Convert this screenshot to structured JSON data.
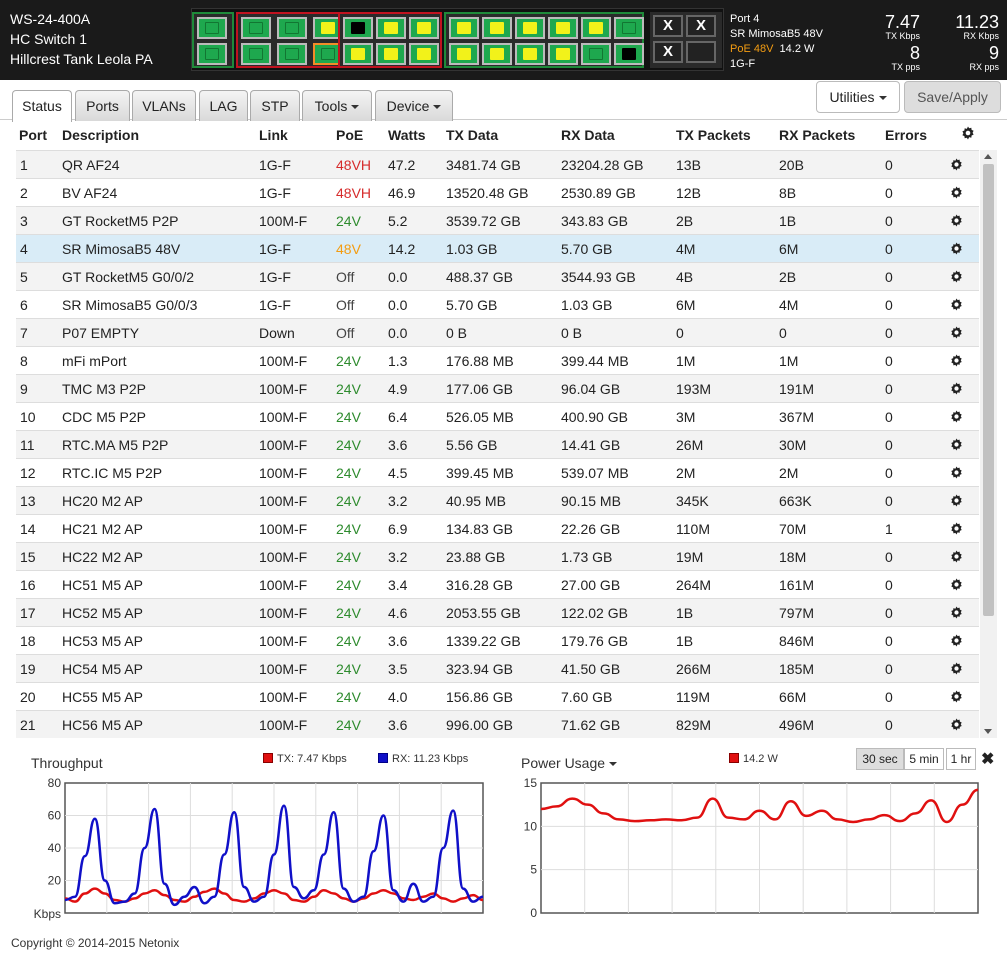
{
  "device": {
    "model": "WS-24-400A",
    "name": "HC Switch 1",
    "location": "Hillcrest Tank Leola PA"
  },
  "port_detail": {
    "port": "Port 4",
    "desc": "SR MimosaB5 48V",
    "poe": "PoE 48V",
    "watts": "14.2 W",
    "link": "1G-F"
  },
  "stats": {
    "tx_kbps": "7.47",
    "tx_kbps_label": "TX Kbps",
    "rx_kbps": "11.23",
    "rx_kbps_label": "RX Kbps",
    "tx_pps": "8",
    "tx_pps_label": "TX pps",
    "rx_pps": "9",
    "rx_pps_label": "RX pps"
  },
  "port_icons": {
    "group1": [
      {
        "row": 0,
        "col": 0,
        "state": "green"
      },
      {
        "row": 0,
        "col": 1,
        "state": "green"
      },
      {
        "row": 0,
        "col": 2,
        "state": "yellow"
      },
      {
        "row": 0,
        "col": 3,
        "state": "green"
      },
      {
        "row": 1,
        "col": 0,
        "state": "green"
      },
      {
        "row": 1,
        "col": 1,
        "state": "green"
      },
      {
        "row": 1,
        "col": 2,
        "state": "green",
        "selected": true
      },
      {
        "row": 1,
        "col": 3,
        "state": "green"
      }
    ],
    "group2": [
      {
        "row": 0,
        "col": 0,
        "state": "black"
      },
      {
        "row": 0,
        "col": 1,
        "state": "yellow"
      },
      {
        "row": 0,
        "col": 2,
        "state": "yellow"
      },
      {
        "row": 1,
        "col": 0,
        "state": "yellow"
      },
      {
        "row": 1,
        "col": 1,
        "state": "yellow"
      },
      {
        "row": 1,
        "col": 2,
        "state": "yellow"
      }
    ],
    "group3": [
      {
        "row": 0,
        "col": 0,
        "state": "yellow"
      },
      {
        "row": 0,
        "col": 1,
        "state": "yellow"
      },
      {
        "row": 0,
        "col": 2,
        "state": "yellow"
      },
      {
        "row": 0,
        "col": 3,
        "state": "yellow"
      },
      {
        "row": 0,
        "col": 4,
        "state": "yellow"
      },
      {
        "row": 0,
        "col": 5,
        "state": "green"
      },
      {
        "row": 1,
        "col": 0,
        "state": "yellow"
      },
      {
        "row": 1,
        "col": 1,
        "state": "yellow"
      },
      {
        "row": 1,
        "col": 2,
        "state": "yellow"
      },
      {
        "row": 1,
        "col": 3,
        "state": "yellow"
      },
      {
        "row": 1,
        "col": 4,
        "state": "green"
      },
      {
        "row": 1,
        "col": 5,
        "state": "black"
      }
    ],
    "sfp": [
      {
        "row": 0,
        "col": 0,
        "state": "x"
      },
      {
        "row": 0,
        "col": 1,
        "state": "x"
      },
      {
        "row": 1,
        "col": 0,
        "state": "x"
      },
      {
        "row": 1,
        "col": 1,
        "state": "empty"
      }
    ]
  },
  "tabs": [
    {
      "label": "Status",
      "active": true
    },
    {
      "label": "Ports"
    },
    {
      "label": "VLANs"
    },
    {
      "label": "LAG"
    },
    {
      "label": "STP"
    },
    {
      "label": "Tools",
      "dropdown": true
    },
    {
      "label": "Device",
      "dropdown": true
    }
  ],
  "buttons": {
    "utilities": "Utilities",
    "save": "Save/Apply"
  },
  "columns": [
    "Port",
    "Description",
    "Link",
    "PoE",
    "Watts",
    "TX Data",
    "RX Data",
    "TX Packets",
    "RX Packets",
    "Errors"
  ],
  "rows": [
    {
      "port": "1",
      "desc": "QR AF24",
      "link": "1G-F",
      "poe": "48VH",
      "watts": "47.2",
      "tx": "3481.74 GB",
      "rx": "23204.28 GB",
      "txp": "13B",
      "rxp": "20B",
      "err": "0"
    },
    {
      "port": "2",
      "desc": "BV AF24",
      "link": "1G-F",
      "poe": "48VH",
      "watts": "46.9",
      "tx": "13520.48 GB",
      "rx": "2530.89 GB",
      "txp": "12B",
      "rxp": "8B",
      "err": "0"
    },
    {
      "port": "3",
      "desc": "GT RocketM5 P2P",
      "link": "100M-F",
      "poe": "24V",
      "watts": "5.2",
      "tx": "3539.72 GB",
      "rx": "343.83 GB",
      "txp": "2B",
      "rxp": "1B",
      "err": "0"
    },
    {
      "port": "4",
      "desc": "SR MimosaB5 48V",
      "link": "1G-F",
      "poe": "48V",
      "watts": "14.2",
      "tx": "1.03 GB",
      "rx": "5.70 GB",
      "txp": "4M",
      "rxp": "6M",
      "err": "0",
      "highlight": true
    },
    {
      "port": "5",
      "desc": "GT RocketM5 G0/0/2",
      "link": "1G-F",
      "poe": "Off",
      "watts": "0.0",
      "tx": "488.37 GB",
      "rx": "3544.93 GB",
      "txp": "4B",
      "rxp": "2B",
      "err": "0"
    },
    {
      "port": "6",
      "desc": "SR MimosaB5 G0/0/3",
      "link": "1G-F",
      "poe": "Off",
      "watts": "0.0",
      "tx": "5.70 GB",
      "rx": "1.03 GB",
      "txp": "6M",
      "rxp": "4M",
      "err": "0"
    },
    {
      "port": "7",
      "desc": "P07 EMPTY",
      "link": "Down",
      "poe": "Off",
      "watts": "0.0",
      "tx": "0 B",
      "rx": "0 B",
      "txp": "0",
      "rxp": "0",
      "err": "0"
    },
    {
      "port": "8",
      "desc": "mFi mPort",
      "link": "100M-F",
      "poe": "24V",
      "watts": "1.3",
      "tx": "176.88 MB",
      "rx": "399.44 MB",
      "txp": "1M",
      "rxp": "1M",
      "err": "0"
    },
    {
      "port": "9",
      "desc": "TMC M3 P2P",
      "link": "100M-F",
      "poe": "24V",
      "watts": "4.9",
      "tx": "177.06 GB",
      "rx": "96.04 GB",
      "txp": "193M",
      "rxp": "191M",
      "err": "0"
    },
    {
      "port": "10",
      "desc": "CDC M5 P2P",
      "link": "100M-F",
      "poe": "24V",
      "watts": "6.4",
      "tx": "526.05 MB",
      "rx": "400.90 GB",
      "txp": "3M",
      "rxp": "367M",
      "err": "0"
    },
    {
      "port": "11",
      "desc": "RTC.MA M5 P2P",
      "link": "100M-F",
      "poe": "24V",
      "watts": "3.6",
      "tx": "5.56 GB",
      "rx": "14.41 GB",
      "txp": "26M",
      "rxp": "30M",
      "err": "0"
    },
    {
      "port": "12",
      "desc": "RTC.IC M5 P2P",
      "link": "100M-F",
      "poe": "24V",
      "watts": "4.5",
      "tx": "399.45 MB",
      "rx": "539.07 MB",
      "txp": "2M",
      "rxp": "2M",
      "err": "0"
    },
    {
      "port": "13",
      "desc": "HC20 M2 AP",
      "link": "100M-F",
      "poe": "24V",
      "watts": "3.2",
      "tx": "40.95 MB",
      "rx": "90.15 MB",
      "txp": "345K",
      "rxp": "663K",
      "err": "0"
    },
    {
      "port": "14",
      "desc": "HC21 M2 AP",
      "link": "100M-F",
      "poe": "24V",
      "watts": "6.9",
      "tx": "134.83 GB",
      "rx": "22.26 GB",
      "txp": "110M",
      "rxp": "70M",
      "err": "1"
    },
    {
      "port": "15",
      "desc": "HC22 M2 AP",
      "link": "100M-F",
      "poe": "24V",
      "watts": "3.2",
      "tx": "23.88 GB",
      "rx": "1.73 GB",
      "txp": "19M",
      "rxp": "18M",
      "err": "0"
    },
    {
      "port": "16",
      "desc": "HC51 M5 AP",
      "link": "100M-F",
      "poe": "24V",
      "watts": "3.4",
      "tx": "316.28 GB",
      "rx": "27.00 GB",
      "txp": "264M",
      "rxp": "161M",
      "err": "0"
    },
    {
      "port": "17",
      "desc": "HC52 M5 AP",
      "link": "100M-F",
      "poe": "24V",
      "watts": "4.6",
      "tx": "2053.55 GB",
      "rx": "122.02 GB",
      "txp": "1B",
      "rxp": "797M",
      "err": "0"
    },
    {
      "port": "18",
      "desc": "HC53 M5 AP",
      "link": "100M-F",
      "poe": "24V",
      "watts": "3.6",
      "tx": "1339.22 GB",
      "rx": "179.76 GB",
      "txp": "1B",
      "rxp": "846M",
      "err": "0"
    },
    {
      "port": "19",
      "desc": "HC54 M5 AP",
      "link": "100M-F",
      "poe": "24V",
      "watts": "3.5",
      "tx": "323.94 GB",
      "rx": "41.50 GB",
      "txp": "266M",
      "rxp": "185M",
      "err": "0"
    },
    {
      "port": "20",
      "desc": "HC55 M5 AP",
      "link": "100M-F",
      "poe": "24V",
      "watts": "4.0",
      "tx": "156.86 GB",
      "rx": "7.60 GB",
      "txp": "119M",
      "rxp": "66M",
      "err": "0"
    },
    {
      "port": "21",
      "desc": "HC56 M5 AP",
      "link": "100M-F",
      "poe": "24V",
      "watts": "3.6",
      "tx": "996.00 GB",
      "rx": "71.62 GB",
      "txp": "829M",
      "rxp": "496M",
      "err": "0"
    }
  ],
  "throughput": {
    "title": "Throughput",
    "tx_legend": "TX: 7.47 Kbps",
    "rx_legend": "RX: 11.23 Kbps"
  },
  "power": {
    "title": "Power Usage",
    "legend": "14.2 W"
  },
  "ranges": [
    "30 sec",
    "5 min",
    "1 hr"
  ],
  "close_glyph": "✖",
  "footer": "Copyright © 2014-2015 Netonix",
  "colors": {
    "tx": "#e01010",
    "rx": "#1010c8",
    "power": "#e01010"
  },
  "chart_data": [
    {
      "type": "line",
      "ylabel": "Kbps",
      "ylim": [
        0,
        80
      ],
      "yticks": [
        20,
        40,
        60,
        80
      ],
      "grid": true,
      "series": [
        {
          "name": "TX: 7.47 Kbps",
          "values": [
            9,
            7,
            12,
            15,
            12,
            8,
            7,
            9,
            12,
            14,
            11,
            8,
            7,
            10,
            13,
            15,
            12,
            8,
            7,
            9,
            12,
            14,
            12,
            8,
            7,
            10,
            14,
            12,
            9,
            7,
            9,
            12,
            14,
            12,
            9,
            8,
            10,
            12,
            9,
            7,
            9,
            11,
            8
          ]
        },
        {
          "name": "RX: 11.23 Kbps",
          "values": [
            8,
            10,
            35,
            58,
            20,
            6,
            7,
            12,
            40,
            64,
            18,
            5,
            10,
            16,
            6,
            10,
            36,
            62,
            16,
            7,
            10,
            36,
            66,
            16,
            9,
            14,
            36,
            62,
            15,
            7,
            10,
            38,
            60,
            14,
            7,
            18,
            7,
            10,
            40,
            63,
            15,
            7,
            10
          ]
        }
      ]
    },
    {
      "type": "line",
      "ylim": [
        0,
        15
      ],
      "yticks": [
        0,
        5,
        10,
        15
      ],
      "grid": true,
      "series": [
        {
          "name": "14.2 W",
          "values": [
            12,
            12.3,
            13.2,
            12.5,
            11.5,
            10.8,
            10.6,
            10.7,
            10.8,
            10.7,
            11,
            13.2,
            11,
            10.8,
            11.8,
            10.8,
            12.9,
            11.2,
            11.8,
            10.8,
            10.5,
            10.8,
            11.3,
            10.6,
            11.5,
            13,
            10.5,
            12.5,
            14.2
          ]
        }
      ]
    }
  ]
}
